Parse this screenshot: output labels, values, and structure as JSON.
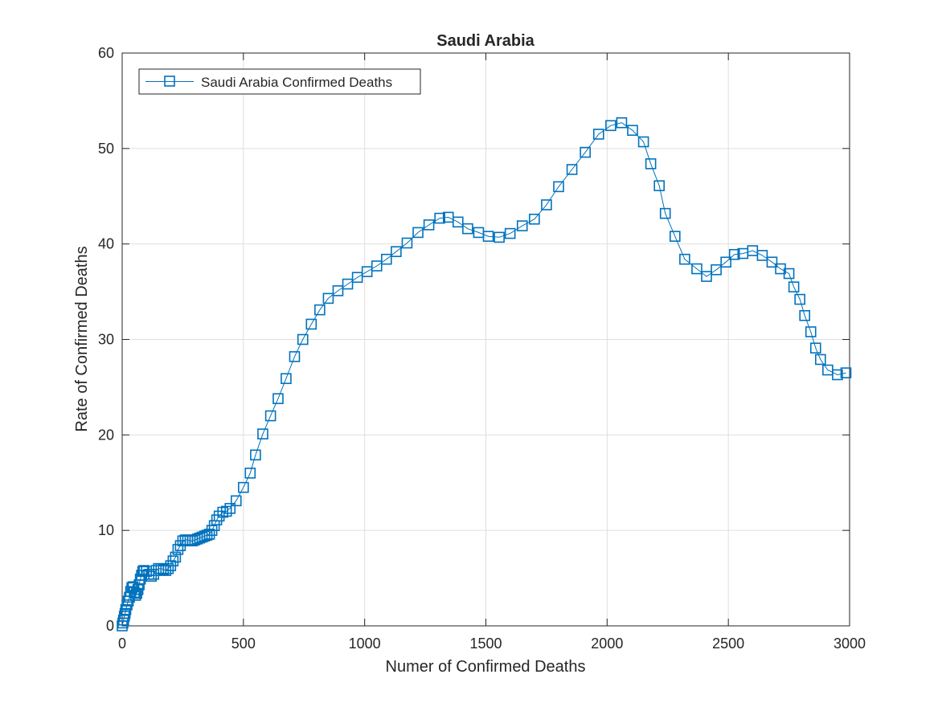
{
  "chart_data": {
    "type": "line",
    "title": "Saudi Arabia",
    "xlabel": "Numer of Confirmed Deaths",
    "ylabel": "Rate of Confirmed Deaths",
    "xlim": [
      0,
      3000
    ],
    "ylim": [
      0,
      60
    ],
    "xticks": [
      0,
      500,
      1000,
      1500,
      2000,
      2500,
      3000
    ],
    "yticks": [
      0,
      10,
      20,
      30,
      40,
      50,
      60
    ],
    "grid": true,
    "legend_position": "top-left",
    "marker": "square",
    "series": [
      {
        "name": "Saudi Arabia Confirmed Deaths",
        "color": "#0072BD",
        "points": [
          [
            0,
            0
          ],
          [
            3,
            0.3
          ],
          [
            6,
            0.6
          ],
          [
            9,
            1.0
          ],
          [
            12,
            1.3
          ],
          [
            15,
            1.7
          ],
          [
            20,
            2.2
          ],
          [
            25,
            2.6
          ],
          [
            30,
            3.0
          ],
          [
            35,
            3.6
          ],
          [
            40,
            4.0
          ],
          [
            45,
            4.1
          ],
          [
            50,
            3.5
          ],
          [
            55,
            3.2
          ],
          [
            60,
            3.4
          ],
          [
            65,
            3.8
          ],
          [
            70,
            4.3
          ],
          [
            75,
            4.9
          ],
          [
            80,
            5.3
          ],
          [
            85,
            5.7
          ],
          [
            90,
            5.8
          ],
          [
            100,
            5.7
          ],
          [
            110,
            5.4
          ],
          [
            120,
            5.2
          ],
          [
            130,
            5.4
          ],
          [
            140,
            5.8
          ],
          [
            150,
            6.0
          ],
          [
            160,
            6.0
          ],
          [
            170,
            5.9
          ],
          [
            180,
            5.8
          ],
          [
            190,
            6.0
          ],
          [
            200,
            6.3
          ],
          [
            210,
            6.8
          ],
          [
            220,
            7.2
          ],
          [
            230,
            8.0
          ],
          [
            240,
            8.4
          ],
          [
            250,
            8.9
          ],
          [
            260,
            9.0
          ],
          [
            270,
            9.0
          ],
          [
            280,
            8.9
          ],
          [
            290,
            8.9
          ],
          [
            300,
            9.0
          ],
          [
            310,
            9.1
          ],
          [
            320,
            9.2
          ],
          [
            330,
            9.3
          ],
          [
            340,
            9.4
          ],
          [
            350,
            9.5
          ],
          [
            360,
            9.6
          ],
          [
            370,
            10.0
          ],
          [
            380,
            10.5
          ],
          [
            390,
            11.1
          ],
          [
            400,
            11.5
          ],
          [
            415,
            11.9
          ],
          [
            430,
            12.0
          ],
          [
            445,
            12.3
          ],
          [
            470,
            13.1
          ],
          [
            500,
            14.5
          ],
          [
            528,
            16.0
          ],
          [
            550,
            17.9
          ],
          [
            580,
            20.1
          ],
          [
            612,
            22.0
          ],
          [
            643,
            23.8
          ],
          [
            676,
            25.9
          ],
          [
            711,
            28.2
          ],
          [
            745,
            30.0
          ],
          [
            780,
            31.6
          ],
          [
            815,
            33.1
          ],
          [
            850,
            34.3
          ],
          [
            890,
            35.1
          ],
          [
            930,
            35.8
          ],
          [
            970,
            36.5
          ],
          [
            1010,
            37.1
          ],
          [
            1050,
            37.7
          ],
          [
            1090,
            38.4
          ],
          [
            1130,
            39.2
          ],
          [
            1175,
            40.1
          ],
          [
            1220,
            41.2
          ],
          [
            1265,
            42.0
          ],
          [
            1310,
            42.7
          ],
          [
            1345,
            42.8
          ],
          [
            1385,
            42.3
          ],
          [
            1425,
            41.6
          ],
          [
            1470,
            41.2
          ],
          [
            1510,
            40.8
          ],
          [
            1555,
            40.7
          ],
          [
            1600,
            41.1
          ],
          [
            1650,
            41.9
          ],
          [
            1700,
            42.6
          ],
          [
            1750,
            44.1
          ],
          [
            1800,
            46.0
          ],
          [
            1855,
            47.8
          ],
          [
            1910,
            49.6
          ],
          [
            1965,
            51.5
          ],
          [
            2015,
            52.4
          ],
          [
            2060,
            52.7
          ],
          [
            2105,
            51.9
          ],
          [
            2150,
            50.7
          ],
          [
            2180,
            48.4
          ],
          [
            2215,
            46.1
          ],
          [
            2240,
            43.2
          ],
          [
            2280,
            40.8
          ],
          [
            2320,
            38.4
          ],
          [
            2370,
            37.4
          ],
          [
            2410,
            36.6
          ],
          [
            2450,
            37.3
          ],
          [
            2490,
            38.1
          ],
          [
            2525,
            38.9
          ],
          [
            2560,
            39.0
          ],
          [
            2600,
            39.3
          ],
          [
            2640,
            38.8
          ],
          [
            2680,
            38.1
          ],
          [
            2715,
            37.4
          ],
          [
            2750,
            36.9
          ],
          [
            2770,
            35.5
          ],
          [
            2795,
            34.2
          ],
          [
            2815,
            32.5
          ],
          [
            2840,
            30.8
          ],
          [
            2860,
            29.1
          ],
          [
            2880,
            27.9
          ],
          [
            2910,
            26.8
          ],
          [
            2950,
            26.3
          ],
          [
            2985,
            26.5
          ]
        ]
      }
    ]
  }
}
